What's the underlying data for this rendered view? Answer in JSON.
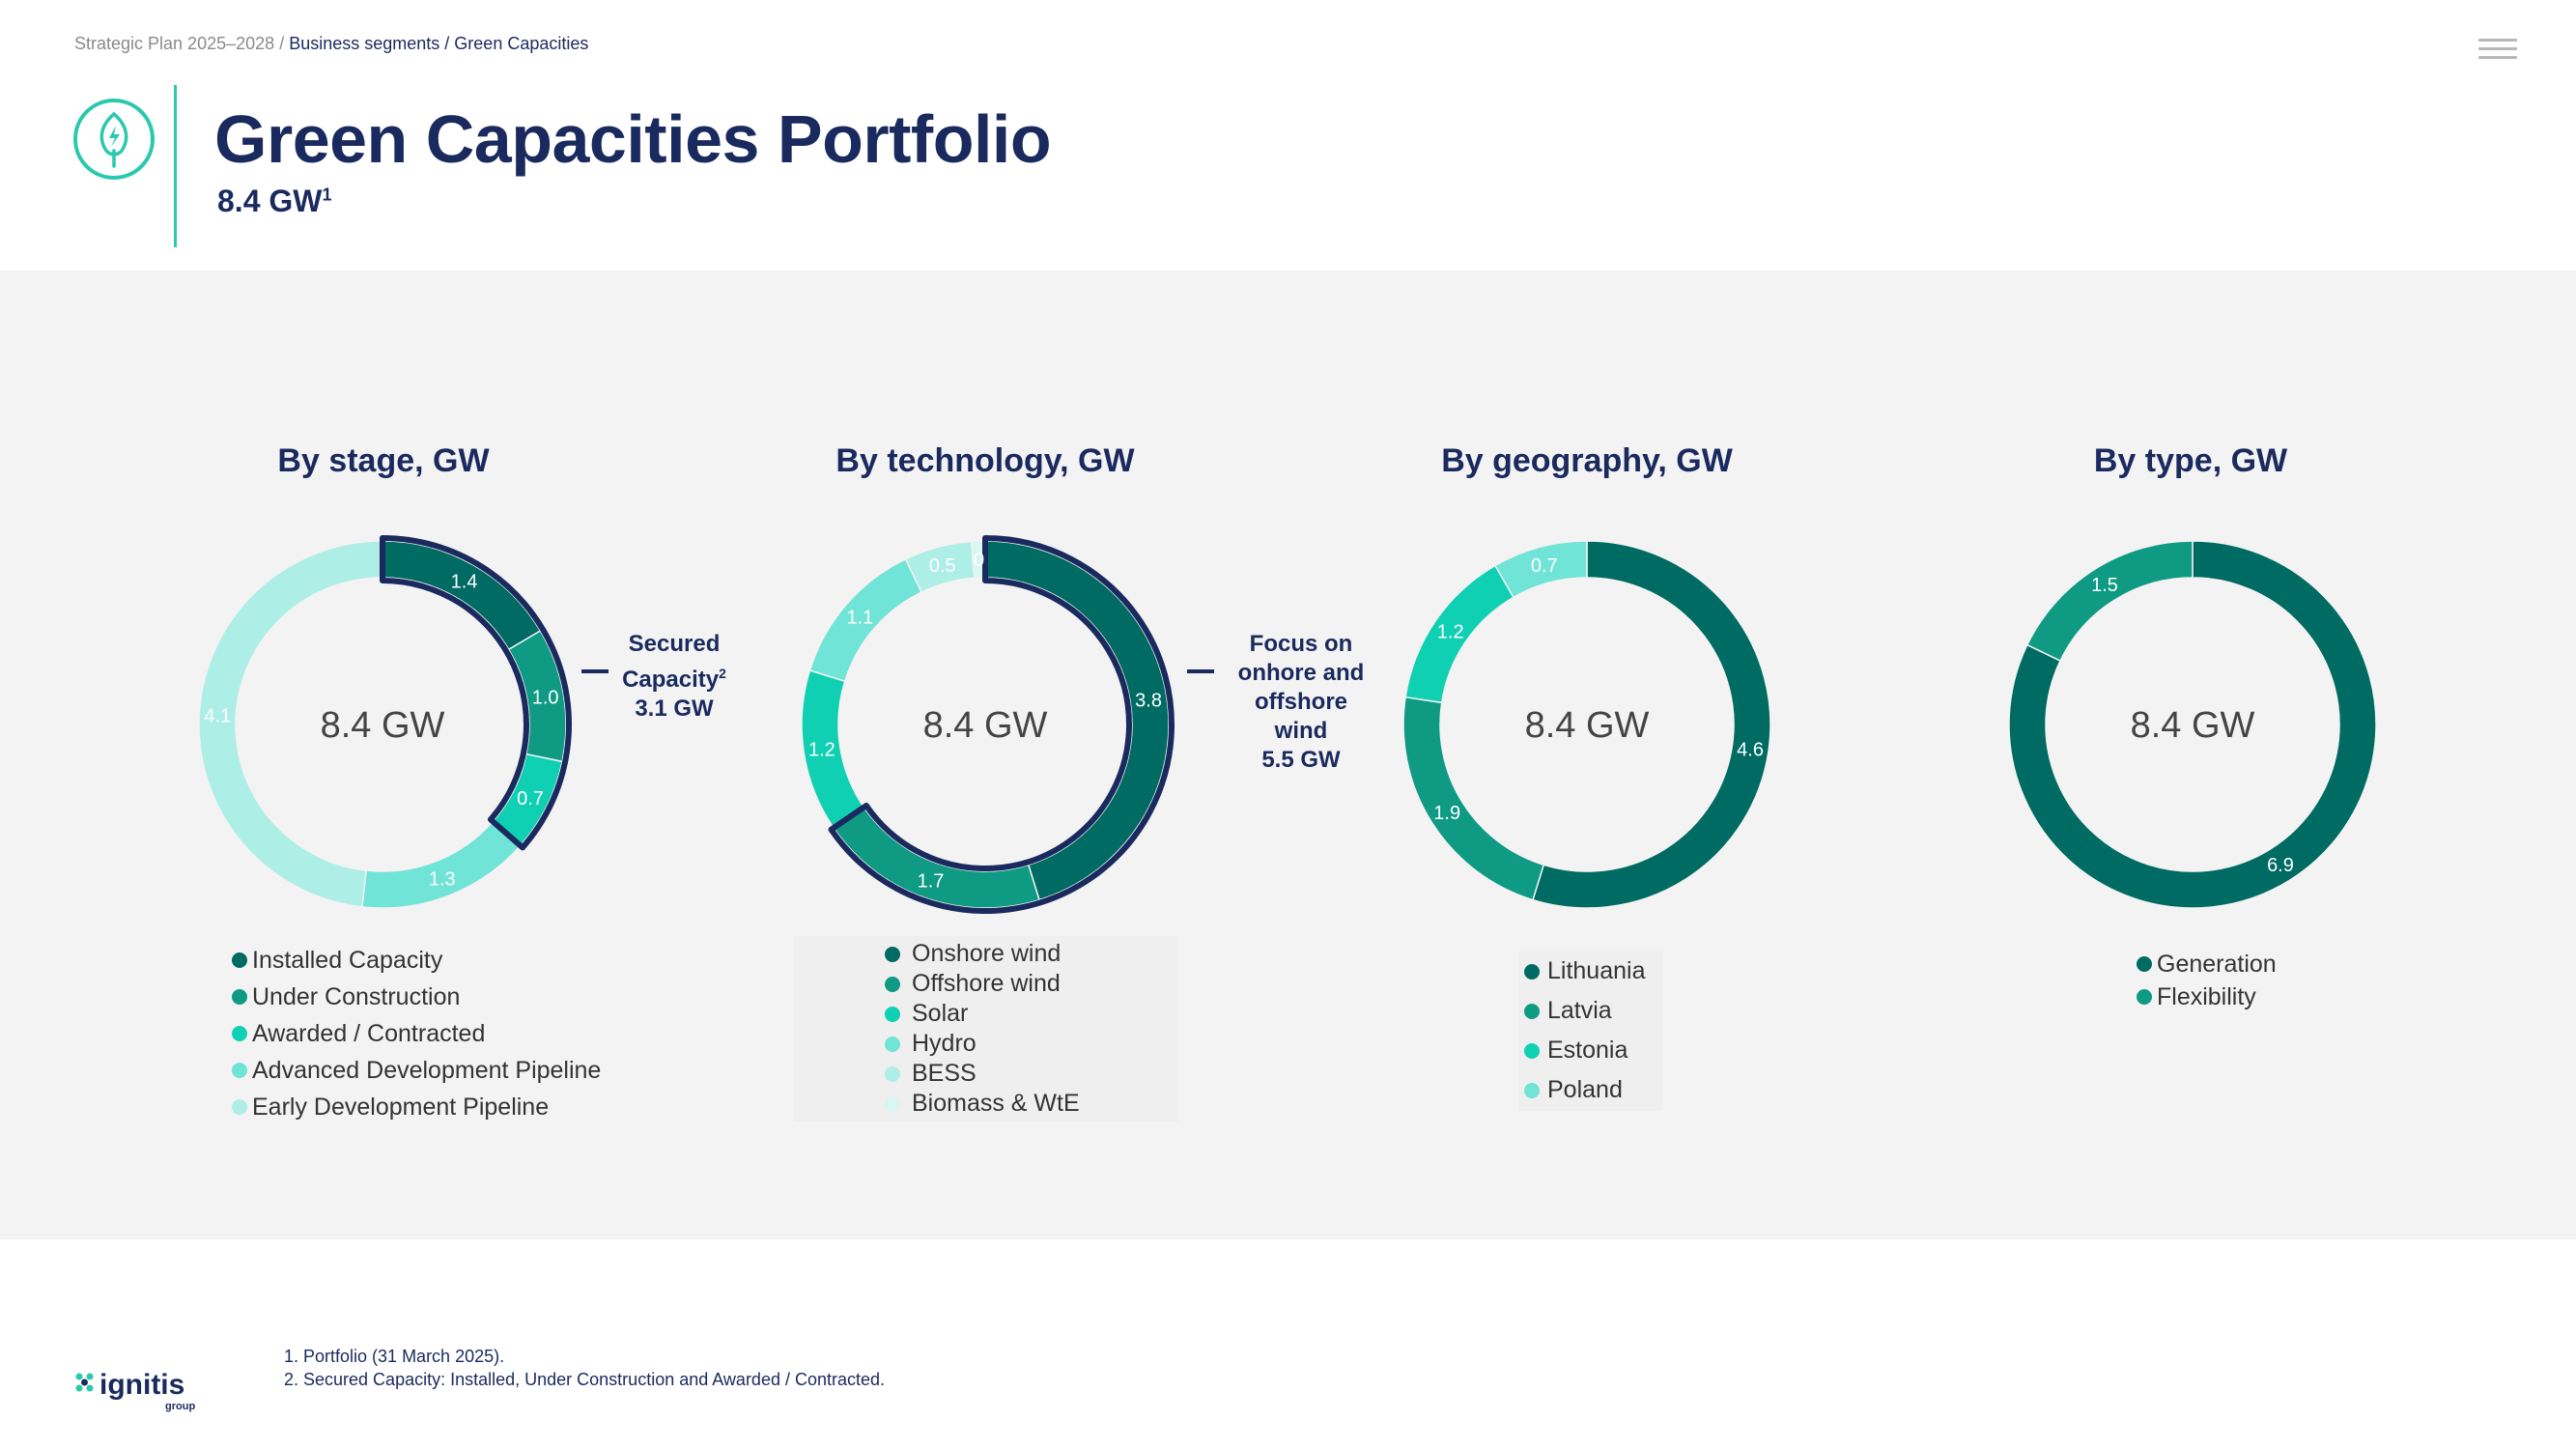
{
  "breadcrumb": {
    "part1": "Strategic Plan 2025–2028",
    "separator": "/",
    "part2": "Business segments / Green Capacities"
  },
  "header": {
    "title": "Green Capacities Portfolio",
    "subtitle": "8.4 GW",
    "subtitle_sup": "1"
  },
  "colors": {
    "c1": "#006b63",
    "c2": "#0f9a84",
    "c3": "#10d0b4",
    "c4": "#70e4d6",
    "c5": "#adeee7",
    "c6": "#daf6f2",
    "navy": "#1a2a5e",
    "teal_accent": "#2ac9ae"
  },
  "chart_data": [
    {
      "type": "donut",
      "title": "By stage, GW",
      "center_label": "8.4 GW",
      "categories": [
        "Installed Capacity",
        "Under Construction",
        "Awarded / Contracted",
        "Advanced Development Pipeline",
        "Early Development Pipeline"
      ],
      "values": [
        1.4,
        1.0,
        0.7,
        1.3,
        4.1
      ],
      "value_labels": [
        "1.4",
        "1.0",
        "0.7",
        "1.3",
        "4.1"
      ],
      "callout": {
        "line1": "Secured",
        "line2": "Capacity",
        "sup": "2",
        "line3": "3.1 GW"
      }
    },
    {
      "type": "donut",
      "title": "By technology, GW",
      "center_label": "8.4 GW",
      "categories": [
        "Onshore wind",
        "Offshore wind",
        "Solar",
        "Hydro",
        "BESS",
        "Biomass & WtE"
      ],
      "values": [
        3.8,
        1.7,
        1.2,
        1.1,
        0.5,
        0.1
      ],
      "value_labels": [
        "3.8",
        "1.7",
        "1.2",
        "1.1",
        "0.5",
        "0"
      ],
      "callout": {
        "line1": "Focus on",
        "line2": "onhore and",
        "line3": "offshore",
        "line4": "wind",
        "line5": "5.5 GW"
      }
    },
    {
      "type": "donut",
      "title": "By geography, GW",
      "center_label": "8.4 GW",
      "categories": [
        "Lithuania",
        "Latvia",
        "Estonia",
        "Poland"
      ],
      "values": [
        4.6,
        1.9,
        1.2,
        0.7
      ],
      "value_labels": [
        "4.6",
        "1.9",
        "1.2",
        "0.7"
      ]
    },
    {
      "type": "donut",
      "title": "By type, GW",
      "center_label": "8.4 GW",
      "categories": [
        "Generation",
        "Flexibility"
      ],
      "values": [
        6.9,
        1.5
      ],
      "value_labels": [
        "6.9",
        "1.5"
      ]
    }
  ],
  "footnotes": [
    "1. Portfolio (31 March 2025).",
    "2. Secured Capacity: Installed, Under Construction and Awarded / Contracted."
  ],
  "logo": {
    "word": "ignitis",
    "sub": "group"
  }
}
